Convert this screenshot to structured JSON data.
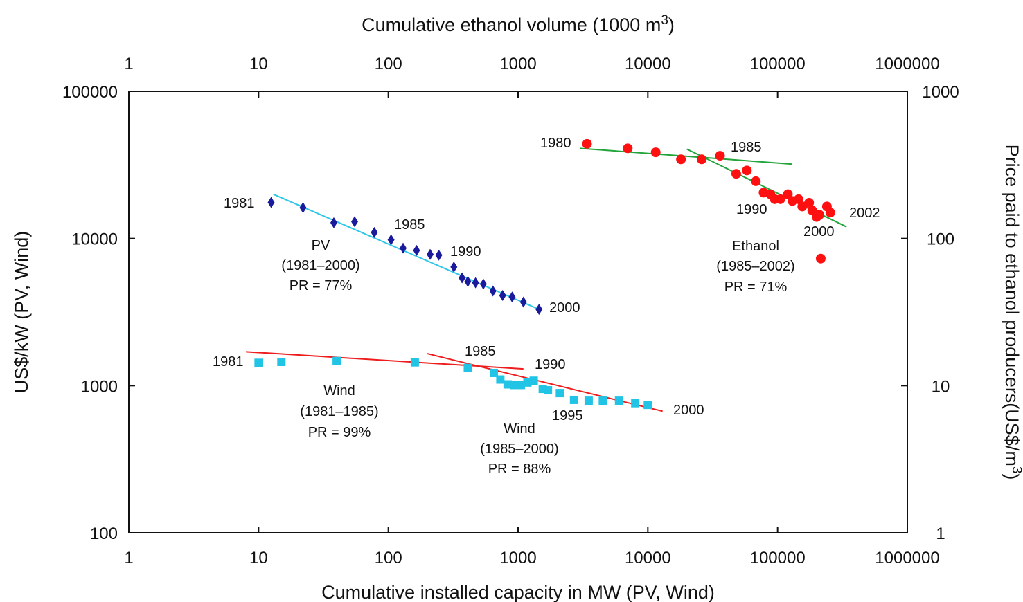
{
  "chart_data": {
    "type": "scatter",
    "xlabel_bottom": "Cumulative installed capacity in MW (PV, Wind)",
    "xlabel_top": "Cumulative ethanol volume (1000 m",
    "xlabel_top_sup": "3",
    "xlabel_top_end": ")",
    "ylabel_left": "US$/kW (PV, Wind)",
    "ylabel_right": "Price paid to ethanol producers(US$/m",
    "ylabel_right_sup": "3",
    "ylabel_right_end": ")",
    "x_scale": "log",
    "y_scale": "log",
    "xlim": [
      1,
      1000000
    ],
    "ylim_left": [
      100,
      100000
    ],
    "ylim_right": [
      1,
      1000
    ],
    "x_ticks": [
      "1",
      "10",
      "100",
      "1000",
      "10000",
      "100000",
      "1000000"
    ],
    "x_top_ticks": [
      "1",
      "10",
      "100",
      "1000",
      "10000",
      "100000",
      "1000000"
    ],
    "y_left_ticks": [
      "100",
      "1000",
      "10000",
      "100000"
    ],
    "y_right_ticks": [
      "1",
      "10",
      "100",
      "1000"
    ],
    "grid": false,
    "series": [
      {
        "key": "pv",
        "axis": "bottom-left",
        "marker": "diamond",
        "color": "#1a1a9c",
        "points": [
          [
            12.5,
            17600
          ],
          [
            22,
            16200
          ],
          [
            38,
            12800
          ],
          [
            55,
            13000
          ],
          [
            78,
            11000
          ],
          [
            105,
            9800
          ],
          [
            130,
            8600
          ],
          [
            165,
            8300
          ],
          [
            210,
            7800
          ],
          [
            245,
            7700
          ],
          [
            320,
            6400
          ],
          [
            370,
            5400
          ],
          [
            410,
            5100
          ],
          [
            470,
            5000
          ],
          [
            540,
            4900
          ],
          [
            640,
            4400
          ],
          [
            760,
            4100
          ],
          [
            900,
            4000
          ],
          [
            1100,
            3700
          ],
          [
            1450,
            3300
          ]
        ],
        "fit": {
          "color": "#2ec7e8",
          "from": [
            13,
            20000
          ],
          "to": [
            1450,
            3300
          ]
        }
      },
      {
        "key": "wind",
        "axis": "bottom-left",
        "marker": "square",
        "color": "#22c4e6",
        "points": [
          [
            10,
            1430
          ],
          [
            15,
            1450
          ],
          [
            40,
            1470
          ],
          [
            160,
            1440
          ],
          [
            410,
            1320
          ],
          [
            650,
            1220
          ],
          [
            730,
            1100
          ],
          [
            830,
            1020
          ],
          [
            930,
            1010
          ],
          [
            1050,
            1010
          ],
          [
            1180,
            1050
          ],
          [
            1320,
            1080
          ],
          [
            1550,
            950
          ],
          [
            1700,
            930
          ],
          [
            2100,
            890
          ],
          [
            2700,
            800
          ],
          [
            3500,
            790
          ],
          [
            4500,
            790
          ],
          [
            6000,
            790
          ],
          [
            8000,
            760
          ],
          [
            10000,
            740
          ]
        ],
        "fit_1": {
          "color": "#ee1c1c",
          "from": [
            8,
            1700
          ],
          "to": [
            1100,
            1300
          ]
        },
        "fit_2": {
          "color": "#ee1c1c",
          "from": [
            200,
            1650
          ],
          "to": [
            13000,
            670
          ]
        }
      },
      {
        "key": "ethanol",
        "axis": "top-right",
        "marker": "circle",
        "color": "#ff1010",
        "points": [
          [
            3400,
            440
          ],
          [
            7000,
            410
          ],
          [
            11500,
            385
          ],
          [
            18000,
            345
          ],
          [
            26000,
            345
          ],
          [
            36000,
            365
          ],
          [
            48000,
            275
          ],
          [
            58000,
            290
          ],
          [
            68000,
            245
          ],
          [
            78000,
            205
          ],
          [
            88000,
            200
          ],
          [
            95000,
            185
          ],
          [
            105000,
            185
          ],
          [
            120000,
            200
          ],
          [
            130000,
            180
          ],
          [
            145000,
            185
          ],
          [
            155000,
            165
          ],
          [
            175000,
            175
          ],
          [
            185000,
            155
          ],
          [
            200000,
            140
          ],
          [
            210000,
            145
          ],
          [
            240000,
            165
          ],
          [
            255000,
            150
          ],
          [
            215000,
            73
          ]
        ],
        "fit_1": {
          "color": "#22a43a",
          "from": [
            3000,
            410
          ],
          "to": [
            130000,
            320
          ]
        },
        "fit_2": {
          "color": "#22a43a",
          "from": [
            20000,
            405
          ],
          "to": [
            340000,
            120
          ]
        }
      }
    ],
    "annotations": {
      "pv": {
        "y1981": "1981",
        "y1985": "1985",
        "y1990": "1990",
        "y2000": "2000",
        "name": "PV",
        "range": "(1981–2000)",
        "pr": "PR = 77%"
      },
      "wind": {
        "y1981": "1981",
        "y1985": "1985",
        "y1990": "1990",
        "y1995": "1995",
        "y2000": "2000",
        "name1": "Wind",
        "range1": "(1981–1985)",
        "pr1": "PR = 99%",
        "name2": "Wind",
        "range2": "(1985–2000)",
        "pr2": "PR = 88%"
      },
      "ethanol": {
        "y1980": "1980",
        "y1985": "1985",
        "y1990": "1990",
        "y2000": "2000",
        "y2002": "2002",
        "name": "Ethanol",
        "range": "(1985–2002)",
        "pr": "PR = 71%"
      }
    }
  }
}
